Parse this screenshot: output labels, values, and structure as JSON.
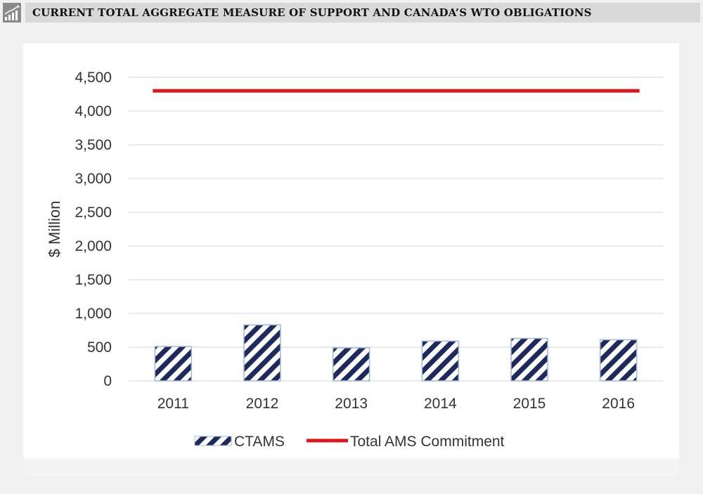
{
  "header": {
    "title": "CURRENT TOTAL AGGREGATE MEASURE OF SUPPORT AND CANADA’S WTO OBLIGATIONS",
    "icon": "bar-chart-trend-icon"
  },
  "chart_data": {
    "type": "bar",
    "title": "CURRENT TOTAL AGGREGATE MEASURE OF SUPPORT AND CANADA’S WTO OBLIGATIONS",
    "xlabel": "",
    "ylabel": "$ Million",
    "ylim": [
      0,
      4500
    ],
    "yticks": [
      0,
      500,
      1000,
      1500,
      2000,
      2500,
      3000,
      3500,
      4000,
      4500
    ],
    "ytick_labels": [
      "0",
      "500",
      "1,000",
      "1,500",
      "2,000",
      "2,500",
      "3,000",
      "3,500",
      "4,000",
      "4,500"
    ],
    "categories": [
      "2011",
      "2012",
      "2013",
      "2014",
      "2015",
      "2016"
    ],
    "grid": true,
    "legend_placement": "bottom-center",
    "series": [
      {
        "name": "CTAMS",
        "kind": "bar",
        "pattern": "diagonal-stripes",
        "color": "#1f2a5c",
        "values": [
          510,
          830,
          490,
          590,
          630,
          610
        ]
      },
      {
        "name": "Total AMS Commitment",
        "kind": "line",
        "color": "#e0161b",
        "values": [
          4300,
          4300,
          4300,
          4300,
          4300,
          4300
        ]
      }
    ]
  }
}
